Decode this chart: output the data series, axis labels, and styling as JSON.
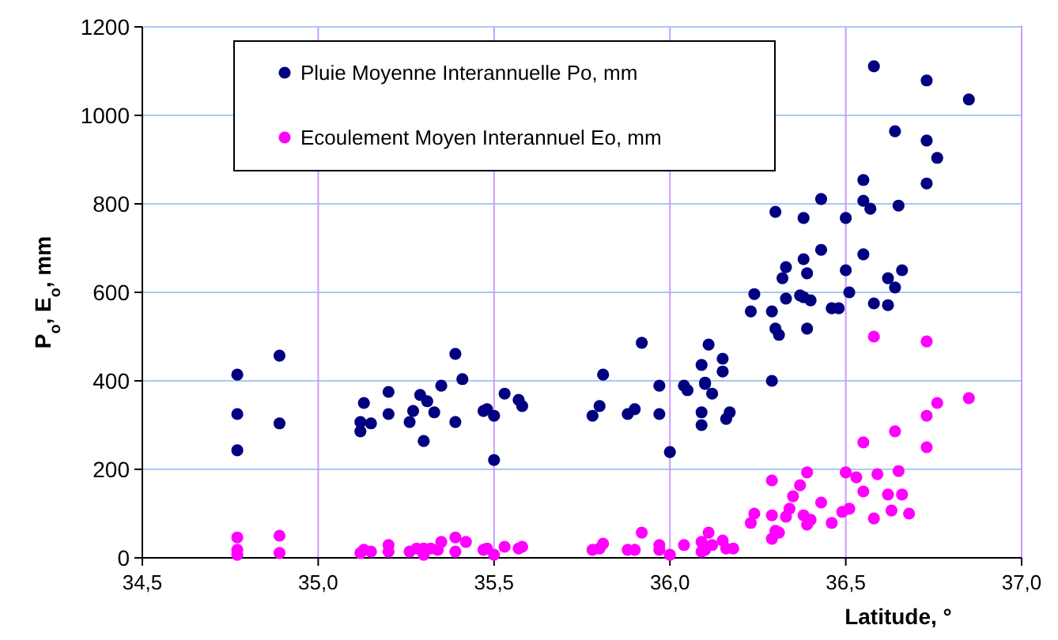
{
  "chart_data": {
    "type": "scatter",
    "xlabel": "Latitude, °",
    "ylabel": "P$_{o}$, E$_{o}$, mm",
    "xlim": [
      34.5,
      37.0
    ],
    "ylim": [
      0,
      1200
    ],
    "xticks": [
      {
        "value": 34.5,
        "label": "34,5"
      },
      {
        "value": 35.0,
        "label": "35,0"
      },
      {
        "value": 35.5,
        "label": "35,5"
      },
      {
        "value": 36.0,
        "label": "36,0"
      },
      {
        "value": 36.5,
        "label": "36,5"
      },
      {
        "value": 37.0,
        "label": "37,0"
      }
    ],
    "yticks": [
      0,
      200,
      400,
      600,
      800,
      1000,
      1200
    ],
    "grid": true,
    "legend": "top left",
    "marker": "circle",
    "series": [
      {
        "name": "Pluie Moyenne Interannuelle Po, mm",
        "color": "#000080",
        "x": [
          34.77,
          34.77,
          34.77,
          34.89,
          34.89,
          35.12,
          35.12,
          35.13,
          35.15,
          35.2,
          35.2,
          35.26,
          35.27,
          35.29,
          35.3,
          35.31,
          35.33,
          35.35,
          35.39,
          35.39,
          35.41,
          35.47,
          35.48,
          35.5,
          35.5,
          35.53,
          35.57,
          35.58,
          35.78,
          35.8,
          35.81,
          35.88,
          35.9,
          35.92,
          35.97,
          35.97,
          36.0,
          36.04,
          36.05,
          36.09,
          36.09,
          36.09,
          36.1,
          36.1,
          36.11,
          36.12,
          36.15,
          36.15,
          36.16,
          36.17,
          36.29,
          36.23,
          36.24,
          36.29,
          36.3,
          36.31,
          36.33,
          36.37,
          36.39,
          36.4,
          36.46,
          36.48,
          36.51,
          36.58,
          36.62,
          36.64,
          36.58,
          36.73,
          36.85,
          36.64,
          36.73,
          36.76,
          36.55,
          36.73,
          36.43,
          36.55,
          36.3,
          36.38,
          36.5,
          36.57,
          36.65,
          36.43,
          36.55,
          36.38,
          36.33,
          36.32,
          36.39,
          36.5,
          36.62,
          36.66,
          36.38
        ],
        "values": [
          414,
          325,
          243,
          457,
          304,
          286,
          307,
          350,
          304,
          325,
          375,
          307,
          332,
          368,
          264,
          354,
          329,
          389,
          307,
          461,
          404,
          332,
          336,
          321,
          221,
          371,
          357,
          343,
          321,
          343,
          414,
          325,
          336,
          486,
          389,
          325,
          239,
          389,
          379,
          329,
          300,
          436,
          393,
          396,
          482,
          371,
          450,
          421,
          314,
          329,
          400,
          557,
          596,
          557,
          518,
          504,
          586,
          593,
          518,
          582,
          564,
          564,
          600,
          575,
          571,
          611,
          1111,
          1079,
          1036,
          964,
          943,
          904,
          854,
          846,
          811,
          807,
          782,
          768,
          768,
          789,
          796,
          696,
          686,
          675,
          657,
          632,
          643,
          650,
          632,
          650,
          589
        ]
      },
      {
        "name": "Ecoulement Moyen Interannuel Eo, mm",
        "color": "#ff00ff",
        "x": [
          34.77,
          34.77,
          34.77,
          34.89,
          34.89,
          35.12,
          35.13,
          35.15,
          35.2,
          35.2,
          35.26,
          35.28,
          35.3,
          35.3,
          35.32,
          35.34,
          35.35,
          35.39,
          35.39,
          35.42,
          35.47,
          35.48,
          35.5,
          35.53,
          35.57,
          35.58,
          35.78,
          35.8,
          35.81,
          35.88,
          35.9,
          35.92,
          35.97,
          35.97,
          36.0,
          36.04,
          36.09,
          36.09,
          36.1,
          36.11,
          36.12,
          36.15,
          36.16,
          36.18,
          36.23,
          36.24,
          36.29,
          36.29,
          36.29,
          36.3,
          36.31,
          36.33,
          36.34,
          36.35,
          36.37,
          36.38,
          36.39,
          36.39,
          36.4,
          36.43,
          36.46,
          36.49,
          36.5,
          36.51,
          36.53,
          36.55,
          36.55,
          36.58,
          36.58,
          36.59,
          36.62,
          36.63,
          36.64,
          36.65,
          36.66,
          36.68,
          36.73,
          36.73,
          36.73,
          36.76,
          36.85
        ],
        "values": [
          46,
          18,
          7,
          50,
          11,
          11,
          18,
          14,
          14,
          29,
          14,
          21,
          21,
          7,
          21,
          18,
          36,
          14,
          46,
          36,
          18,
          21,
          7,
          25,
          21,
          25,
          18,
          21,
          32,
          18,
          18,
          57,
          29,
          18,
          7,
          29,
          14,
          36,
          18,
          57,
          29,
          39,
          21,
          21,
          79,
          100,
          43,
          96,
          175,
          61,
          57,
          93,
          111,
          139,
          164,
          96,
          75,
          193,
          86,
          125,
          79,
          104,
          193,
          111,
          182,
          261,
          150,
          500,
          89,
          189,
          143,
          107,
          286,
          196,
          143,
          100,
          489,
          321,
          250,
          350,
          361
        ]
      }
    ]
  }
}
